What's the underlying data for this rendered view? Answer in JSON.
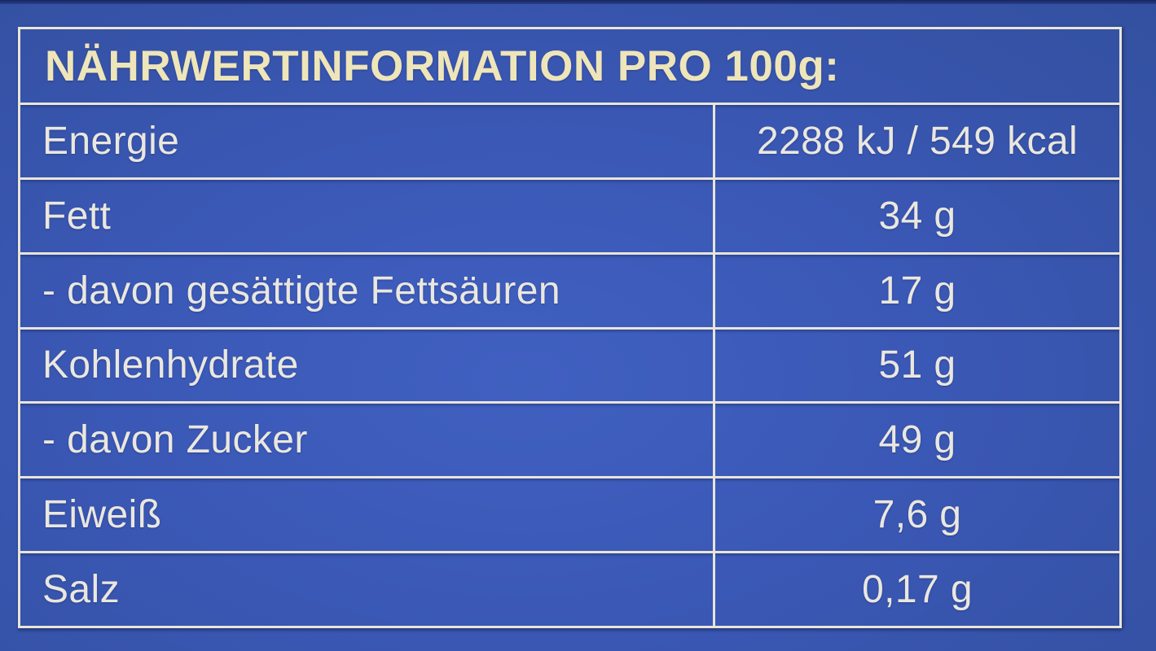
{
  "label": {
    "title": "NÄHRWERTINFORMATION PRO 100g:",
    "rows": [
      {
        "name": "Energie",
        "value": "2288 kJ / 549 kcal"
      },
      {
        "name": "Fett",
        "value": "34 g"
      },
      {
        "name": "- davon gesättigte Fettsäuren",
        "value": "17 g"
      },
      {
        "name": "Kohlenhydrate",
        "value": "51 g"
      },
      {
        "name": "- davon Zucker",
        "value": "49 g"
      },
      {
        "name": "Eiweiß",
        "value": "7,6 g"
      },
      {
        "name": "Salz",
        "value": "0,17 g"
      }
    ],
    "colors": {
      "package_blue": "#3a57b4",
      "rule_white": "#e8e5d9",
      "title_cream": "#eee5b9",
      "row_text": "#eae7de"
    }
  }
}
